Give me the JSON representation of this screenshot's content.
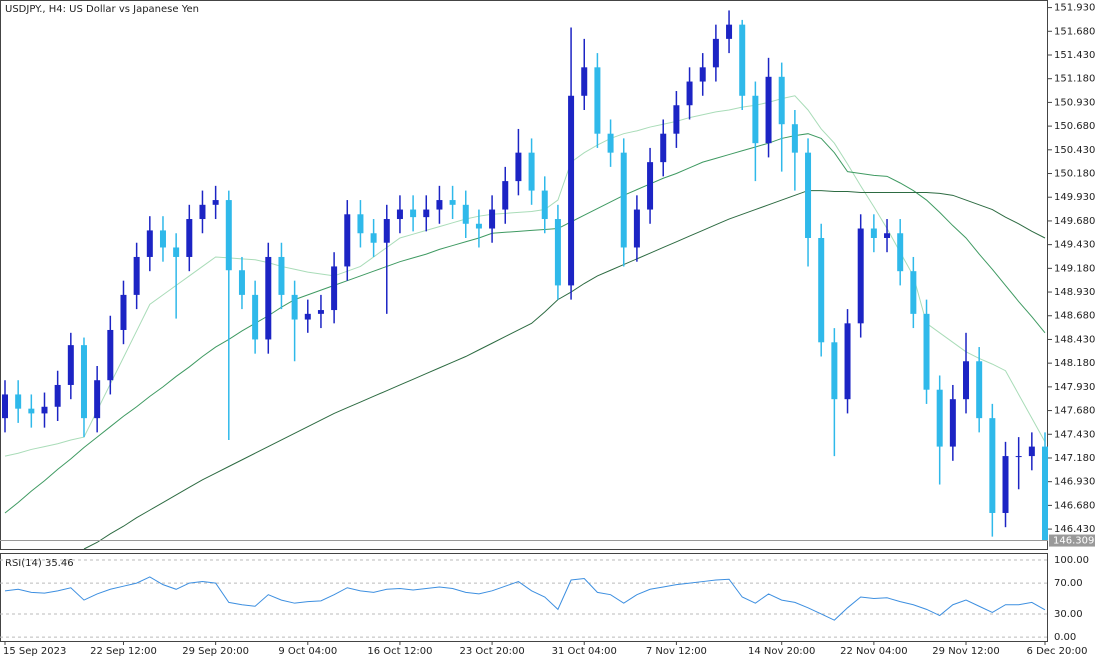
{
  "chart_data": {
    "type": "candlestick",
    "title": "USDJPY., H4:  US Dollar vs Japanese Yen",
    "categories": [
      "15 Sep 2023",
      null,
      null,
      null,
      null,
      null,
      null,
      null,
      null,
      "22 Sep 12:00",
      null,
      null,
      null,
      null,
      null,
      null,
      "29 Sep 20:00",
      null,
      null,
      null,
      null,
      null,
      null,
      "9 Oct 04:00",
      null,
      null,
      null,
      null,
      null,
      null,
      "16 Oct 12:00",
      null,
      null,
      null,
      null,
      null,
      null,
      "23 Oct 20:00",
      null,
      null,
      null,
      null,
      null,
      null,
      "31 Oct 04:00",
      null,
      null,
      null,
      null,
      null,
      null,
      "7 Nov 12:00",
      null,
      null,
      null,
      null,
      null,
      null,
      null,
      "14 Nov 20:00",
      null,
      null,
      null,
      null,
      null,
      null,
      "22 Nov 04:00",
      null,
      null,
      null,
      null,
      null,
      null,
      "29 Nov 12:00",
      null,
      null,
      null,
      null,
      null,
      "6 Dec 20:00"
    ],
    "open": [
      147.6,
      147.85,
      147.7,
      147.65,
      147.72,
      147.95,
      148.37,
      147.6,
      148.0,
      148.53,
      148.9,
      149.3,
      149.58,
      149.4,
      149.3,
      149.7,
      149.85,
      149.9,
      149.16,
      148.9,
      148.43,
      149.3,
      148.9,
      148.64,
      148.7,
      148.74,
      149.2,
      149.75,
      149.55,
      149.45,
      149.7,
      149.8,
      149.72,
      149.8,
      149.9,
      149.85,
      149.65,
      149.6,
      149.8,
      150.1,
      150.4,
      150.0,
      149.7,
      149.0,
      151.0,
      151.3,
      150.6,
      150.4,
      149.4,
      149.8,
      150.3,
      150.6,
      150.9,
      151.15,
      151.3,
      151.6,
      151.75,
      151.0,
      150.5,
      151.2,
      150.7,
      150.4,
      149.5,
      148.4,
      147.8,
      148.6,
      149.6,
      149.5,
      149.55,
      149.15,
      148.7,
      147.9,
      147.3,
      147.8,
      148.2,
      147.6,
      146.6,
      147.2,
      147.2,
      147.3
    ],
    "high": [
      148.0,
      148.0,
      147.85,
      147.87,
      148.1,
      148.5,
      148.45,
      148.15,
      148.68,
      149.05,
      149.45,
      149.73,
      149.73,
      149.55,
      149.85,
      150.0,
      150.05,
      150.0,
      149.3,
      149.05,
      149.45,
      149.45,
      149.05,
      148.85,
      148.9,
      149.35,
      149.9,
      149.9,
      149.7,
      149.85,
      149.95,
      149.95,
      149.95,
      150.05,
      150.05,
      150.0,
      149.8,
      149.95,
      150.25,
      150.65,
      150.55,
      150.15,
      149.85,
      151.72,
      151.6,
      151.45,
      150.75,
      150.55,
      149.95,
      150.45,
      150.75,
      151.05,
      151.3,
      151.45,
      151.75,
      151.9,
      151.8,
      151.15,
      151.4,
      151.35,
      150.85,
      150.55,
      149.65,
      148.55,
      148.75,
      149.75,
      149.75,
      149.7,
      149.7,
      149.3,
      148.85,
      148.05,
      147.95,
      148.5,
      148.35,
      147.75,
      147.35,
      147.4,
      147.45,
      147.45
    ],
    "low": [
      147.45,
      147.55,
      147.5,
      147.5,
      147.57,
      147.8,
      147.4,
      147.45,
      147.85,
      148.38,
      148.75,
      149.15,
      149.25,
      148.65,
      149.15,
      149.55,
      149.7,
      147.37,
      148.75,
      148.28,
      148.28,
      148.75,
      148.2,
      148.5,
      148.55,
      148.6,
      149.05,
      149.4,
      149.3,
      148.7,
      149.55,
      149.57,
      149.57,
      149.65,
      149.7,
      149.5,
      149.4,
      149.45,
      149.65,
      149.95,
      149.85,
      149.55,
      148.85,
      148.85,
      150.85,
      150.45,
      150.25,
      149.2,
      149.25,
      149.65,
      150.15,
      150.45,
      150.75,
      151.0,
      151.15,
      151.45,
      150.85,
      150.1,
      150.35,
      150.2,
      150.0,
      149.2,
      148.25,
      147.2,
      147.65,
      148.45,
      149.35,
      149.35,
      149.0,
      148.55,
      147.75,
      146.9,
      147.15,
      147.65,
      147.45,
      146.35,
      146.45,
      146.85,
      147.05,
      146.309
    ],
    "close": [
      147.85,
      147.7,
      147.65,
      147.72,
      147.95,
      148.37,
      147.6,
      148.0,
      148.53,
      148.9,
      149.3,
      149.58,
      149.4,
      149.3,
      149.7,
      149.85,
      149.9,
      149.16,
      148.9,
      148.43,
      149.3,
      148.9,
      148.64,
      148.7,
      148.74,
      149.2,
      149.75,
      149.55,
      149.45,
      149.7,
      149.8,
      149.72,
      149.8,
      149.9,
      149.85,
      149.65,
      149.6,
      149.8,
      150.1,
      150.4,
      150.0,
      149.7,
      149.0,
      151.0,
      151.3,
      150.6,
      150.4,
      149.4,
      149.8,
      150.3,
      150.6,
      150.9,
      151.15,
      151.3,
      151.6,
      151.75,
      151.0,
      150.5,
      151.2,
      150.7,
      150.4,
      149.5,
      148.4,
      147.8,
      148.6,
      149.6,
      149.5,
      149.55,
      149.15,
      148.7,
      147.9,
      147.3,
      147.8,
      148.2,
      147.6,
      146.6,
      147.2,
      147.2,
      147.3,
      146.309
    ],
    "up_color": "#1c24c4",
    "down_color": "#2fb9ea",
    "last_value_label": "146.309",
    "overlays": [
      {
        "color": "#a9dcb8",
        "values": [
          147.2,
          147.23,
          147.27,
          147.3,
          147.33,
          147.37,
          147.4,
          147.68,
          147.96,
          148.24,
          148.52,
          148.8,
          148.9,
          149.0,
          149.1,
          149.2,
          149.3,
          149.29,
          149.28,
          149.27,
          149.24,
          149.2,
          149.17,
          149.14,
          149.12,
          149.1,
          149.15,
          149.2,
          149.3,
          149.4,
          149.5,
          149.54,
          149.58,
          149.62,
          149.66,
          149.7,
          149.73,
          149.75,
          149.76,
          149.77,
          149.78,
          149.8,
          149.9,
          150.3,
          150.4,
          150.48,
          150.55,
          150.6,
          150.63,
          150.67,
          150.7,
          150.73,
          150.77,
          150.8,
          150.83,
          150.85,
          150.88,
          150.9,
          150.93,
          150.97,
          151.0,
          150.85,
          150.65,
          150.5,
          150.28,
          150.05,
          149.83,
          149.6,
          149.35,
          149.1,
          148.6,
          148.5,
          148.4,
          148.3,
          148.23,
          148.17,
          148.1,
          147.85,
          147.6,
          147.35
        ]
      },
      {
        "color": "#3f9a62",
        "values": [
          146.6,
          146.71,
          146.83,
          146.94,
          147.06,
          147.17,
          147.29,
          147.4,
          147.51,
          147.62,
          147.72,
          147.83,
          147.93,
          148.04,
          148.14,
          148.25,
          148.35,
          148.43,
          148.52,
          148.6,
          148.68,
          148.77,
          148.85,
          148.9,
          148.95,
          149.0,
          149.05,
          149.1,
          149.15,
          149.2,
          149.25,
          149.29,
          149.33,
          149.38,
          149.42,
          149.46,
          149.5,
          149.55,
          149.56,
          149.57,
          149.58,
          149.59,
          149.6,
          149.67,
          149.74,
          149.81,
          149.88,
          149.95,
          150.01,
          150.07,
          150.13,
          150.18,
          150.24,
          150.3,
          150.34,
          150.38,
          150.42,
          150.46,
          150.5,
          150.55,
          150.58,
          150.6,
          150.55,
          150.4,
          150.2,
          150.18,
          150.16,
          150.15,
          150.08,
          150.0,
          149.9,
          149.77,
          149.63,
          149.5,
          149.33,
          149.17,
          149.0,
          148.83,
          148.67,
          148.5
        ]
      },
      {
        "color": "#2d6b42",
        "values": [
          null,
          null,
          null,
          null,
          null,
          null,
          146.2,
          146.29,
          146.38,
          146.46,
          146.55,
          146.63,
          146.71,
          146.79,
          146.87,
          146.95,
          147.02,
          147.09,
          147.16,
          147.23,
          147.3,
          147.37,
          147.44,
          147.51,
          147.58,
          147.65,
          147.71,
          147.77,
          147.83,
          147.89,
          147.95,
          148.01,
          148.07,
          148.13,
          148.19,
          148.25,
          148.32,
          148.39,
          148.46,
          148.53,
          148.6,
          148.72,
          148.85,
          148.93,
          149.02,
          149.1,
          149.16,
          149.22,
          149.28,
          149.34,
          149.4,
          149.46,
          149.52,
          149.58,
          149.64,
          149.7,
          149.75,
          149.8,
          149.85,
          149.9,
          149.95,
          150.0,
          150.0,
          149.99,
          149.99,
          149.98,
          149.98,
          149.98,
          149.98,
          149.98,
          149.98,
          149.97,
          149.95,
          149.9,
          149.85,
          149.8,
          149.72,
          149.65,
          149.57,
          149.5
        ]
      }
    ],
    "ylim": [
      146.22,
      152.01
    ],
    "yticks": [
      {
        "value": 151.93,
        "label": "151.930"
      },
      {
        "value": 151.68,
        "label": "151.680"
      },
      {
        "value": 151.43,
        "label": "151.430"
      },
      {
        "value": 151.18,
        "label": "151.180"
      },
      {
        "value": 150.93,
        "label": "150.930"
      },
      {
        "value": 150.68,
        "label": "150.680"
      },
      {
        "value": 150.43,
        "label": "150.430"
      },
      {
        "value": 150.18,
        "label": "150.180"
      },
      {
        "value": 149.93,
        "label": "149.930"
      },
      {
        "value": 149.68,
        "label": "149.680"
      },
      {
        "value": 149.43,
        "label": "149.430"
      },
      {
        "value": 149.18,
        "label": "149.180"
      },
      {
        "value": 148.93,
        "label": "148.930"
      },
      {
        "value": 148.68,
        "label": "148.680"
      },
      {
        "value": 148.43,
        "label": "148.430"
      },
      {
        "value": 148.18,
        "label": "148.180"
      },
      {
        "value": 147.93,
        "label": "147.930"
      },
      {
        "value": 147.68,
        "label": "147.680"
      },
      {
        "value": 147.43,
        "label": "147.430"
      },
      {
        "value": 147.18,
        "label": "147.180"
      },
      {
        "value": 146.93,
        "label": "146.930"
      },
      {
        "value": 146.68,
        "label": "146.680"
      },
      {
        "value": 146.43,
        "label": "146.430"
      }
    ],
    "indicator": {
      "type": "line",
      "title": "RSI(14) 35.46",
      "color": "#3d8fe0",
      "values": [
        60,
        62,
        58,
        57,
        60,
        64,
        48,
        56,
        62,
        66,
        70,
        78,
        68,
        62,
        70,
        72,
        70,
        45,
        42,
        40,
        55,
        48,
        44,
        46,
        47,
        55,
        64,
        60,
        58,
        62,
        63,
        61,
        63,
        65,
        63,
        58,
        56,
        60,
        66,
        72,
        60,
        52,
        36,
        74,
        76,
        58,
        55,
        44,
        55,
        62,
        65,
        68,
        70,
        72,
        74,
        75,
        52,
        44,
        56,
        48,
        45,
        38,
        30,
        22,
        38,
        52,
        50,
        51,
        46,
        42,
        36,
        28,
        42,
        48,
        40,
        32,
        42,
        42,
        45,
        35.46
      ],
      "ylim": [
        -5,
        109
      ],
      "yticks": [
        {
          "value": 100,
          "label": "100.00"
        },
        {
          "value": 70,
          "label": "70.00"
        },
        {
          "value": 30,
          "label": "30.00"
        },
        {
          "value": 0,
          "label": "0.00"
        }
      ]
    }
  }
}
